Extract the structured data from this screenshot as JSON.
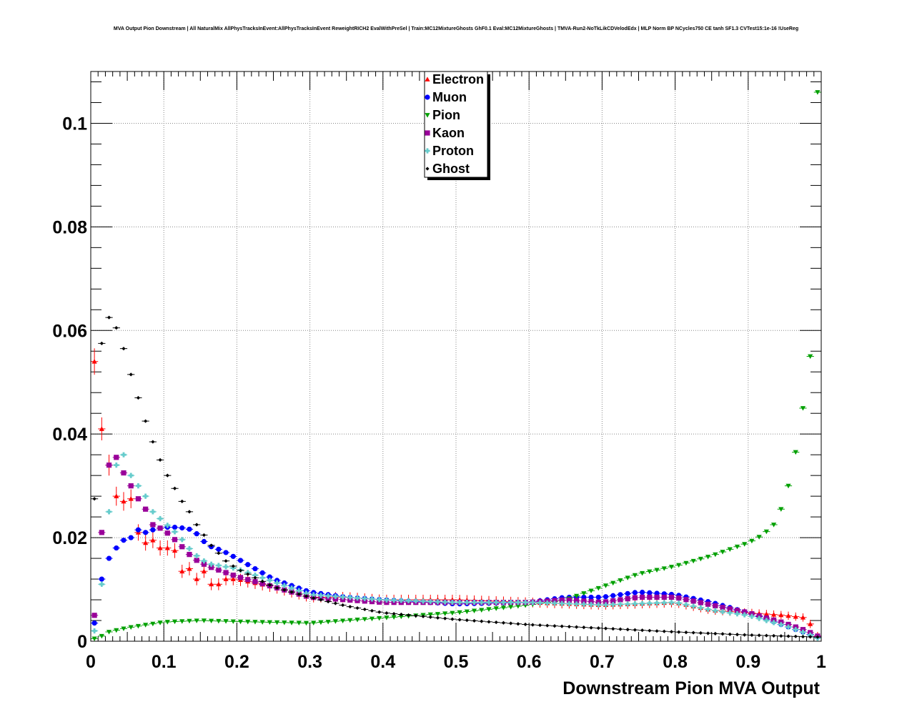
{
  "chart_data": {
    "type": "scatter",
    "title": "MVA Output Pion Downstream | All NaturalMix AllPhysTracksInEvent:AllPhysTracksInEvent ReweightRICH2 EvalWithPreSel | Train:MC12MixtureGhosts GhF0.1 Eval:MC12MixtureGhosts | TMVA-Run2-NoTkLikCDVelodEdx | MLP Norm BP NCycles750 CE tanh SF1.3 CVTest15:1e-16 !UseReg",
    "xlabel": "Downstream Pion MVA Output",
    "ylabel": "",
    "xlim": [
      0,
      1
    ],
    "ylim": [
      0,
      0.11
    ],
    "x_ticks": [
      0,
      0.1,
      0.2,
      0.3,
      0.4,
      0.5,
      0.6,
      0.7,
      0.8,
      0.9,
      1
    ],
    "x_tick_labels": [
      "0",
      "0.1",
      "0.2",
      "0.3",
      "0.4",
      "0.5",
      "0.6",
      "0.7",
      "0.8",
      "0.9",
      "1"
    ],
    "y_ticks": [
      0,
      0.02,
      0.04,
      0.06,
      0.08,
      0.1
    ],
    "y_tick_labels": [
      "0",
      "0.02",
      "0.04",
      "0.06",
      "0.08",
      "0.1"
    ],
    "grid": true,
    "legend_position": "top-center",
    "series": [
      {
        "name": "Electron",
        "color": "#ff0000",
        "marker": "triangle-up",
        "errorbars": true,
        "knots": [
          [
            0.005,
            0.054
          ],
          [
            0.015,
            0.041
          ],
          [
            0.025,
            0.034
          ],
          [
            0.035,
            0.028
          ],
          [
            0.045,
            0.027
          ],
          [
            0.055,
            0.0275
          ],
          [
            0.065,
            0.021
          ],
          [
            0.075,
            0.019
          ],
          [
            0.085,
            0.0195
          ],
          [
            0.095,
            0.018
          ],
          [
            0.105,
            0.018
          ],
          [
            0.115,
            0.0175
          ],
          [
            0.125,
            0.0135
          ],
          [
            0.135,
            0.014
          ],
          [
            0.145,
            0.012
          ],
          [
            0.155,
            0.0135
          ],
          [
            0.165,
            0.011
          ],
          [
            0.175,
            0.011
          ],
          [
            0.185,
            0.012
          ],
          [
            0.2,
            0.012
          ],
          [
            0.25,
            0.0105
          ],
          [
            0.3,
            0.0085
          ],
          [
            0.35,
            0.0085
          ],
          [
            0.4,
            0.008
          ],
          [
            0.5,
            0.008
          ],
          [
            0.6,
            0.0075
          ],
          [
            0.7,
            0.007
          ],
          [
            0.8,
            0.0075
          ],
          [
            0.85,
            0.006
          ],
          [
            0.9,
            0.0055
          ],
          [
            0.95,
            0.005
          ],
          [
            0.98,
            0.0045
          ],
          [
            0.995,
            0.001
          ]
        ]
      },
      {
        "name": "Muon",
        "color": "#0000ff",
        "marker": "circle",
        "knots": [
          [
            0.005,
            0.0035
          ],
          [
            0.015,
            0.012
          ],
          [
            0.025,
            0.016
          ],
          [
            0.035,
            0.018
          ],
          [
            0.045,
            0.0195
          ],
          [
            0.055,
            0.02
          ],
          [
            0.065,
            0.0215
          ],
          [
            0.075,
            0.021
          ],
          [
            0.085,
            0.0215
          ],
          [
            0.1,
            0.022
          ],
          [
            0.12,
            0.022
          ],
          [
            0.14,
            0.0215
          ],
          [
            0.16,
            0.0185
          ],
          [
            0.18,
            0.0175
          ],
          [
            0.2,
            0.016
          ],
          [
            0.25,
            0.012
          ],
          [
            0.3,
            0.0095
          ],
          [
            0.35,
            0.0085
          ],
          [
            0.4,
            0.008
          ],
          [
            0.5,
            0.0072
          ],
          [
            0.6,
            0.0075
          ],
          [
            0.65,
            0.0085
          ],
          [
            0.7,
            0.0085
          ],
          [
            0.75,
            0.0095
          ],
          [
            0.8,
            0.009
          ],
          [
            0.85,
            0.0075
          ],
          [
            0.9,
            0.0055
          ],
          [
            0.95,
            0.003
          ],
          [
            0.995,
            0.0008
          ]
        ]
      },
      {
        "name": "Pion",
        "color": "#00a000",
        "marker": "triangle-down",
        "knots": [
          [
            0.005,
            0.0005
          ],
          [
            0.015,
            0.001
          ],
          [
            0.025,
            0.0018
          ],
          [
            0.05,
            0.0026
          ],
          [
            0.1,
            0.0037
          ],
          [
            0.15,
            0.004
          ],
          [
            0.2,
            0.0038
          ],
          [
            0.3,
            0.0035
          ],
          [
            0.4,
            0.0045
          ],
          [
            0.5,
            0.0055
          ],
          [
            0.6,
            0.007
          ],
          [
            0.65,
            0.008
          ],
          [
            0.7,
            0.0105
          ],
          [
            0.75,
            0.013
          ],
          [
            0.8,
            0.0145
          ],
          [
            0.85,
            0.0165
          ],
          [
            0.9,
            0.019
          ],
          [
            0.92,
            0.0205
          ],
          [
            0.935,
            0.0225
          ],
          [
            0.945,
            0.0255
          ],
          [
            0.955,
            0.03
          ],
          [
            0.965,
            0.0365
          ],
          [
            0.975,
            0.045
          ],
          [
            0.985,
            0.055
          ],
          [
            0.995,
            0.106
          ]
        ]
      },
      {
        "name": "Kaon",
        "color": "#990099",
        "marker": "square",
        "knots": [
          [
            0.005,
            0.005
          ],
          [
            0.015,
            0.021
          ],
          [
            0.025,
            0.034
          ],
          [
            0.035,
            0.0355
          ],
          [
            0.045,
            0.0325
          ],
          [
            0.055,
            0.03
          ],
          [
            0.065,
            0.0275
          ],
          [
            0.075,
            0.0255
          ],
          [
            0.085,
            0.0225
          ],
          [
            0.1,
            0.0215
          ],
          [
            0.12,
            0.019
          ],
          [
            0.14,
            0.016
          ],
          [
            0.16,
            0.0145
          ],
          [
            0.18,
            0.0135
          ],
          [
            0.2,
            0.0125
          ],
          [
            0.25,
            0.0105
          ],
          [
            0.3,
            0.0085
          ],
          [
            0.35,
            0.008
          ],
          [
            0.4,
            0.0075
          ],
          [
            0.5,
            0.0075
          ],
          [
            0.6,
            0.0075
          ],
          [
            0.65,
            0.008
          ],
          [
            0.7,
            0.0075
          ],
          [
            0.75,
            0.0085
          ],
          [
            0.8,
            0.0085
          ],
          [
            0.85,
            0.007
          ],
          [
            0.9,
            0.0055
          ],
          [
            0.95,
            0.0035
          ],
          [
            0.98,
            0.002
          ],
          [
            0.995,
            0.001
          ]
        ]
      },
      {
        "name": "Proton",
        "color": "#66cccc",
        "marker": "cross",
        "knots": [
          [
            0.005,
            0.002
          ],
          [
            0.015,
            0.011
          ],
          [
            0.025,
            0.025
          ],
          [
            0.035,
            0.034
          ],
          [
            0.045,
            0.036
          ],
          [
            0.055,
            0.032
          ],
          [
            0.065,
            0.03
          ],
          [
            0.075,
            0.028
          ],
          [
            0.085,
            0.025
          ],
          [
            0.1,
            0.023
          ],
          [
            0.12,
            0.0205
          ],
          [
            0.14,
            0.017
          ],
          [
            0.16,
            0.015
          ],
          [
            0.18,
            0.0145
          ],
          [
            0.2,
            0.014
          ],
          [
            0.25,
            0.0115
          ],
          [
            0.3,
            0.009
          ],
          [
            0.35,
            0.0085
          ],
          [
            0.4,
            0.008
          ],
          [
            0.5,
            0.0075
          ],
          [
            0.6,
            0.0075
          ],
          [
            0.7,
            0.007
          ],
          [
            0.8,
            0.0075
          ],
          [
            0.85,
            0.006
          ],
          [
            0.9,
            0.005
          ],
          [
            0.95,
            0.003
          ],
          [
            0.98,
            0.0015
          ],
          [
            0.995,
            0.0006
          ]
        ]
      },
      {
        "name": "Ghost",
        "color": "#000000",
        "marker": "diamond",
        "knots": [
          [
            0.005,
            0.0275
          ],
          [
            0.015,
            0.0575
          ],
          [
            0.025,
            0.0625
          ],
          [
            0.035,
            0.0605
          ],
          [
            0.045,
            0.0565
          ],
          [
            0.055,
            0.0515
          ],
          [
            0.065,
            0.047
          ],
          [
            0.075,
            0.0425
          ],
          [
            0.085,
            0.0385
          ],
          [
            0.095,
            0.035
          ],
          [
            0.105,
            0.032
          ],
          [
            0.115,
            0.0295
          ],
          [
            0.125,
            0.027
          ],
          [
            0.135,
            0.025
          ],
          [
            0.145,
            0.0225
          ],
          [
            0.155,
            0.0205
          ],
          [
            0.165,
            0.0185
          ],
          [
            0.175,
            0.017
          ],
          [
            0.185,
            0.0155
          ],
          [
            0.2,
            0.014
          ],
          [
            0.25,
            0.0105
          ],
          [
            0.3,
            0.0085
          ],
          [
            0.35,
            0.0068
          ],
          [
            0.4,
            0.0055
          ],
          [
            0.5,
            0.0042
          ],
          [
            0.6,
            0.0032
          ],
          [
            0.7,
            0.0025
          ],
          [
            0.8,
            0.0018
          ],
          [
            0.9,
            0.0012
          ],
          [
            0.995,
            0.0008
          ]
        ]
      }
    ]
  }
}
